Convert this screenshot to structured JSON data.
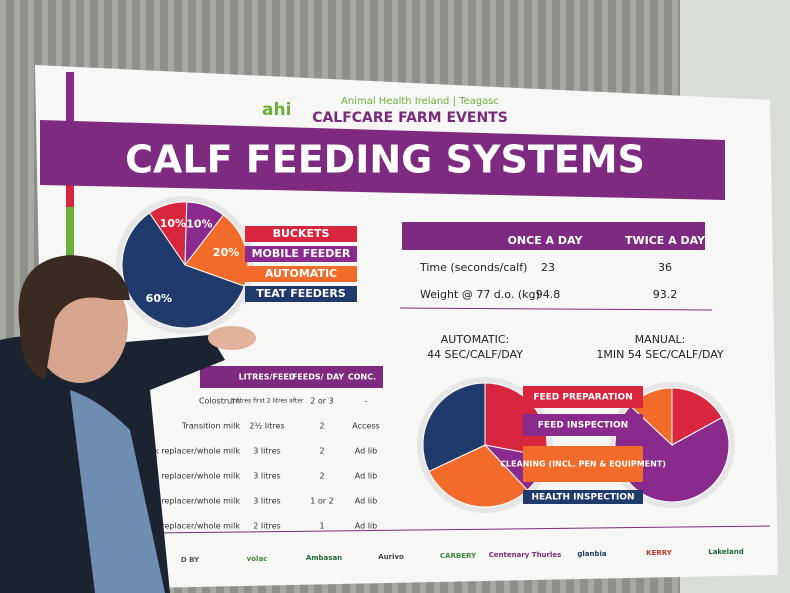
{
  "poster": {
    "header": {
      "logo": "ahi",
      "org": "Animal Health Ireland | Teagasc",
      "event": "CALFCARE FARM EVENTS"
    },
    "title": "CALF FEEDING SYSTEMS",
    "usage_pie": {
      "categories": [
        "BUCKETS",
        "MOBILE FEEDER",
        "AUTOMATIC",
        "TEAT FEEDERS"
      ],
      "colors": [
        "#d7263d",
        "#8a2a8c",
        "#f26b2a",
        "#1f3a6b"
      ],
      "values": [
        10,
        10,
        20,
        60
      ],
      "value_labels": [
        "10%",
        "10%",
        "20%",
        "60%"
      ]
    },
    "frequency_table": {
      "columns": [
        "ONCE A DAY",
        "TWICE A DAY"
      ],
      "rows": [
        [
          "Time (seconds/calf)",
          23,
          36
        ],
        [
          "Weight @ 77 d.o. (kg)",
          94.8,
          93.2
        ]
      ]
    },
    "time_pies": {
      "categories": [
        "FEED PREPARATION",
        "FEED INSPECTION",
        "CLEANING (INCL. PEN & EQUIPMENT)",
        "HEALTH INSPECTION"
      ],
      "colors": [
        "#d7263d",
        "#8a2a8c",
        "#f26b2a",
        "#1f3a6b"
      ],
      "pies": [
        {
          "name": "AUTOMATIC:",
          "subtitle": "44 SEC/CALF/DAY",
          "values": [
            28,
            10,
            30,
            32
          ]
        },
        {
          "name": "MANUAL:",
          "subtitle": "1MIN 54 SEC/CALF/DAY",
          "values": [
            17,
            70,
            13,
            0
          ]
        }
      ]
    },
    "feeding_table": {
      "columns": [
        "LITRES/FEED",
        "FEEDS/ DAY",
        "CONC."
      ],
      "rows": [
        [
          "Colostrum",
          "3 litres first 2 litres after",
          "2 or 3",
          "-"
        ],
        [
          "Transition milk",
          "2½ litres",
          "2",
          "Access"
        ],
        [
          "Milk replacer/whole milk",
          "3 litres",
          "2",
          "Ad lib"
        ],
        [
          "Milk replacer/whole milk",
          "3 litres",
          "2",
          "Ad lib"
        ],
        [
          "replacer/whole milk",
          "3 litres",
          "1 or 2",
          "Ad lib"
        ],
        [
          "replacer/whole milk",
          "2 litres",
          "1",
          "Ad lib"
        ]
      ]
    },
    "sponsors": [
      "D BY",
      "volac",
      "Ambasan",
      "Aurivo",
      "CARBERY",
      "Centenary Thurles",
      "glanbia",
      "KERRY",
      "Lakeland"
    ]
  }
}
